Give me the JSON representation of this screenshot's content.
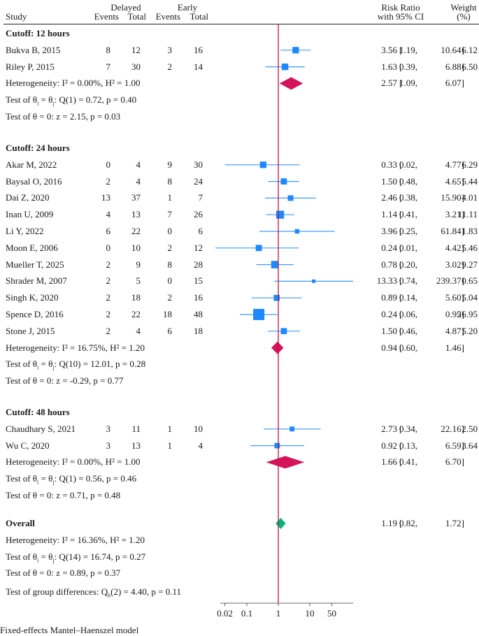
{
  "chart_data": {
    "type": "forest",
    "measure": "Risk Ratio",
    "scale": "log",
    "axis_ticks": [
      "0.02",
      "0.1",
      "1",
      "10",
      "50"
    ],
    "axis_tick_values": [
      0.02,
      0.1,
      1,
      10,
      50
    ],
    "xlim": [
      0.01,
      240
    ],
    "reference_line": 1,
    "footnote": "Fixed-effects Mantel–Haenszel model",
    "colors": {
      "study": "#1e88ff",
      "subgroup_diamond": "#d4145a",
      "overall_diamond": "#00b67a",
      "reference_line": "#c0143c"
    },
    "headers": {
      "study": "Study",
      "delayed": "Delayed",
      "early": "Early",
      "events": "Events",
      "total": "Total",
      "rr_line1": "Risk Ratio",
      "rr_line2": "with 95% CI",
      "weight_line1": "Weight",
      "weight_line2": "(%)"
    },
    "groups": [
      {
        "title": "Cutoff: 12 hours",
        "studies": [
          {
            "name": "Bukva B, 2015",
            "d_events": "8",
            "d_total": "12",
            "e_events": "3",
            "e_total": "16",
            "rr": 3.56,
            "lo": 1.19,
            "hi": 10.64,
            "ci_text": "3.56 [ 1.19,   10.64]",
            "rr_s": "3.56",
            "lo_s": "1.19",
            "hi_s": "10.64",
            "weight": "6.12"
          },
          {
            "name": "Riley P, 2015",
            "d_events": "7",
            "d_total": "30",
            "e_events": "2",
            "e_total": "14",
            "rr": 1.63,
            "lo": 0.39,
            "hi": 6.88,
            "rr_s": "1.63",
            "lo_s": "0.39",
            "hi_s": "6.88",
            "weight": "6.50"
          }
        ],
        "summary": {
          "rr": 2.57,
          "lo": 1.09,
          "hi": 6.07,
          "rr_s": "2.57",
          "lo_s": "1.09",
          "hi_s": "6.07"
        },
        "heterogeneity": "Heterogeneity: I² = 0.00%, H² = 1.00",
        "test_ij_prefix": "Test of θ",
        "test_ij_suffix": ": Q(1) = 0.72, p = 0.40",
        "test_zero": "Test of θ = 0: z = 2.15, p = 0.03"
      },
      {
        "title": "Cutoff: 24 hours",
        "studies": [
          {
            "name": "Akar M, 2022",
            "d_events": "0",
            "d_total": "4",
            "e_events": "9",
            "e_total": "30",
            "rr": 0.33,
            "lo": 0.02,
            "hi": 4.77,
            "rr_s": "0.33",
            "lo_s": "0.02",
            "hi_s": "4.77",
            "weight": "6.29"
          },
          {
            "name": "Baysal O, 2016",
            "d_events": "2",
            "d_total": "4",
            "e_events": "8",
            "e_total": "24",
            "rr": 1.5,
            "lo": 0.48,
            "hi": 4.65,
            "rr_s": "1.50",
            "lo_s": "0.48",
            "hi_s": "4.65",
            "weight": "5.44"
          },
          {
            "name": "Dai Z, 2020",
            "d_events": "13",
            "d_total": "37",
            "e_events": "1",
            "e_total": "7",
            "rr": 2.46,
            "lo": 0.38,
            "hi": 15.9,
            "rr_s": "2.46",
            "lo_s": "0.38",
            "hi_s": "15.90",
            "weight": "4.01"
          },
          {
            "name": "Inan U, 2009",
            "d_events": "4",
            "d_total": "13",
            "e_events": "7",
            "e_total": "26",
            "rr": 1.14,
            "lo": 0.41,
            "hi": 3.21,
            "rr_s": "1.14",
            "lo_s": "0.41",
            "hi_s": "3.21",
            "weight": "11.11"
          },
          {
            "name": "Li Y, 2022",
            "d_events": "6",
            "d_total": "22",
            "e_events": "0",
            "e_total": "6",
            "rr": 3.96,
            "lo": 0.25,
            "hi": 61.84,
            "rr_s": "3.96",
            "lo_s": "0.25",
            "hi_s": "61.84",
            "weight": "1.83"
          },
          {
            "name": "Moon E, 2006",
            "d_events": "0",
            "d_total": "10",
            "e_events": "2",
            "e_total": "12",
            "rr": 0.24,
            "lo": 0.01,
            "hi": 4.42,
            "rr_s": "0.24",
            "lo_s": "0.01",
            "hi_s": "4.42",
            "weight": "5.46"
          },
          {
            "name": "Mueller T, 2025",
            "d_events": "2",
            "d_total": "9",
            "e_events": "8",
            "e_total": "28",
            "rr": 0.78,
            "lo": 0.2,
            "hi": 3.02,
            "rr_s": "0.78",
            "lo_s": "0.20",
            "hi_s": "3.02",
            "weight": "9.27"
          },
          {
            "name": "Shrader M, 2007",
            "d_events": "2",
            "d_total": "5",
            "e_events": "0",
            "e_total": "15",
            "rr": 13.33,
            "lo": 0.74,
            "hi": 239.37,
            "rr_s": "13.33",
            "lo_s": "0.74",
            "hi_s": "239.37",
            "weight": "0.65"
          },
          {
            "name": "Singh K, 2020",
            "d_events": "2",
            "d_total": "18",
            "e_events": "2",
            "e_total": "16",
            "rr": 0.89,
            "lo": 0.14,
            "hi": 5.6,
            "rr_s": "0.89",
            "lo_s": "0.14",
            "hi_s": "5.60",
            "weight": "5.04"
          },
          {
            "name": "Spence D, 2016",
            "d_events": "2",
            "d_total": "22",
            "e_events": "18",
            "e_total": "48",
            "rr": 0.24,
            "lo": 0.06,
            "hi": 0.95,
            "rr_s": "0.24",
            "lo_s": "0.06",
            "hi_s": "0.95",
            "weight": "26.95"
          },
          {
            "name": "Stone J, 2015",
            "d_events": "2",
            "d_total": "4",
            "e_events": "6",
            "e_total": "18",
            "rr": 1.5,
            "lo": 0.46,
            "hi": 4.87,
            "rr_s": "1.50",
            "lo_s": "0.46",
            "hi_s": "4.87",
            "weight": "5.20"
          }
        ],
        "summary": {
          "rr": 0.94,
          "lo": 0.6,
          "hi": 1.46,
          "rr_s": "0.94",
          "lo_s": "0.60",
          "hi_s": "1.46"
        },
        "heterogeneity": "Heterogeneity: I² = 16.75%, H² = 1.20",
        "test_ij_prefix": "Test of θ",
        "test_ij_suffix": ": Q(10) = 12.01, p = 0.28",
        "test_zero": "Test of θ = 0: z = -0.29, p = 0.77"
      },
      {
        "title": "Cutoff: 48 hours",
        "studies": [
          {
            "name": "Chaudhary S, 2021",
            "d_events": "3",
            "d_total": "11",
            "e_events": "1",
            "e_total": "10",
            "rr": 2.73,
            "lo": 0.34,
            "hi": 22.16,
            "rr_s": "2.73",
            "lo_s": "0.34",
            "hi_s": "22.16",
            "weight": "2.50"
          },
          {
            "name": "Wu C, 2020",
            "d_events": "3",
            "d_total": "13",
            "e_events": "1",
            "e_total": "4",
            "rr": 0.92,
            "lo": 0.13,
            "hi": 6.59,
            "rr_s": "0.92",
            "lo_s": "0.13",
            "hi_s": "6.59",
            "weight": "3.64"
          }
        ],
        "summary": {
          "rr": 1.66,
          "lo": 0.41,
          "hi": 6.7,
          "rr_s": "1.66",
          "lo_s": "0.41",
          "hi_s": "6.70"
        },
        "heterogeneity": "Heterogeneity: I² = 0.00%, H² = 1.00",
        "test_ij_prefix": "Test of θ",
        "test_ij_suffix": ": Q(1) = 0.56, p = 0.46",
        "test_zero": "Test of θ = 0: z = 0.71, p = 0.48"
      }
    ],
    "overall": {
      "title": "Overall",
      "rr": 1.19,
      "lo": 0.82,
      "hi": 1.72,
      "rr_s": "1.19",
      "lo_s": "0.82",
      "hi_s": "1.72",
      "heterogeneity": "Heterogeneity: I² = 16.36%, H² = 1.20",
      "test_ij_prefix": "Test of θ",
      "test_ij_suffix": ": Q(14) = 16.74, p = 0.27",
      "test_zero": "Test of θ = 0: z = 0.89, p = 0.37",
      "group_diff_prefix": "Test of group differences: Q",
      "group_diff_sub": "b",
      "group_diff_suffix": "(2) = 4.40, p = 0.11"
    }
  }
}
